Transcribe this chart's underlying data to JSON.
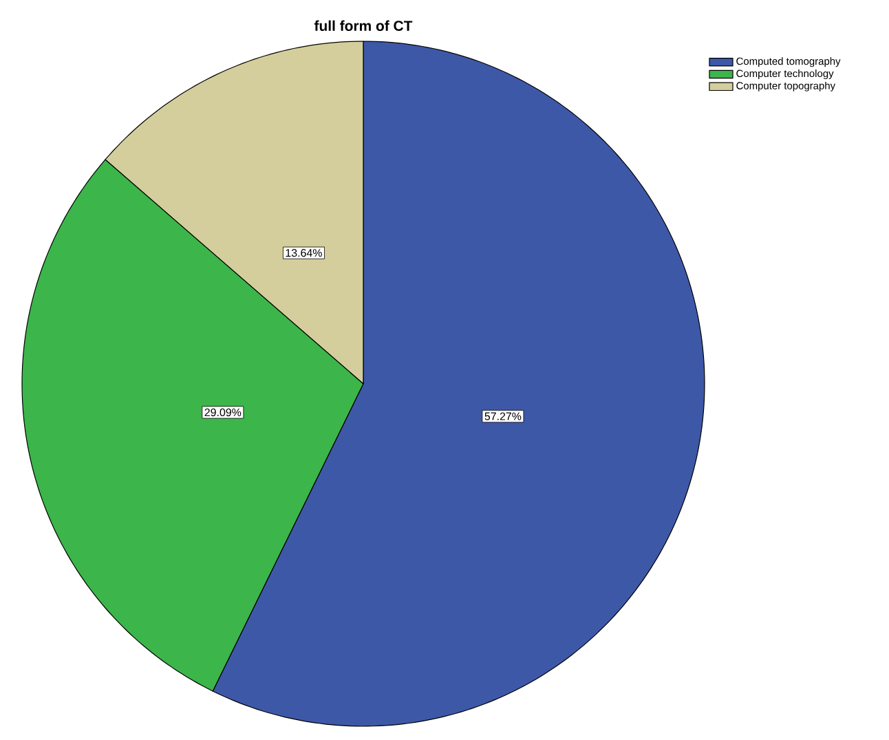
{
  "chart_data": {
    "type": "pie",
    "title": "full form of CT",
    "categories": [
      "Computed tomography",
      "Computer technology",
      "Computer topography"
    ],
    "values": [
      57.27,
      29.09,
      13.64
    ],
    "colors": [
      "#3e58a8",
      "#3cb54a",
      "#d3ce9b"
    ],
    "value_labels": [
      "57.27%",
      "29.09%",
      "13.64%"
    ],
    "legend": "top right"
  }
}
